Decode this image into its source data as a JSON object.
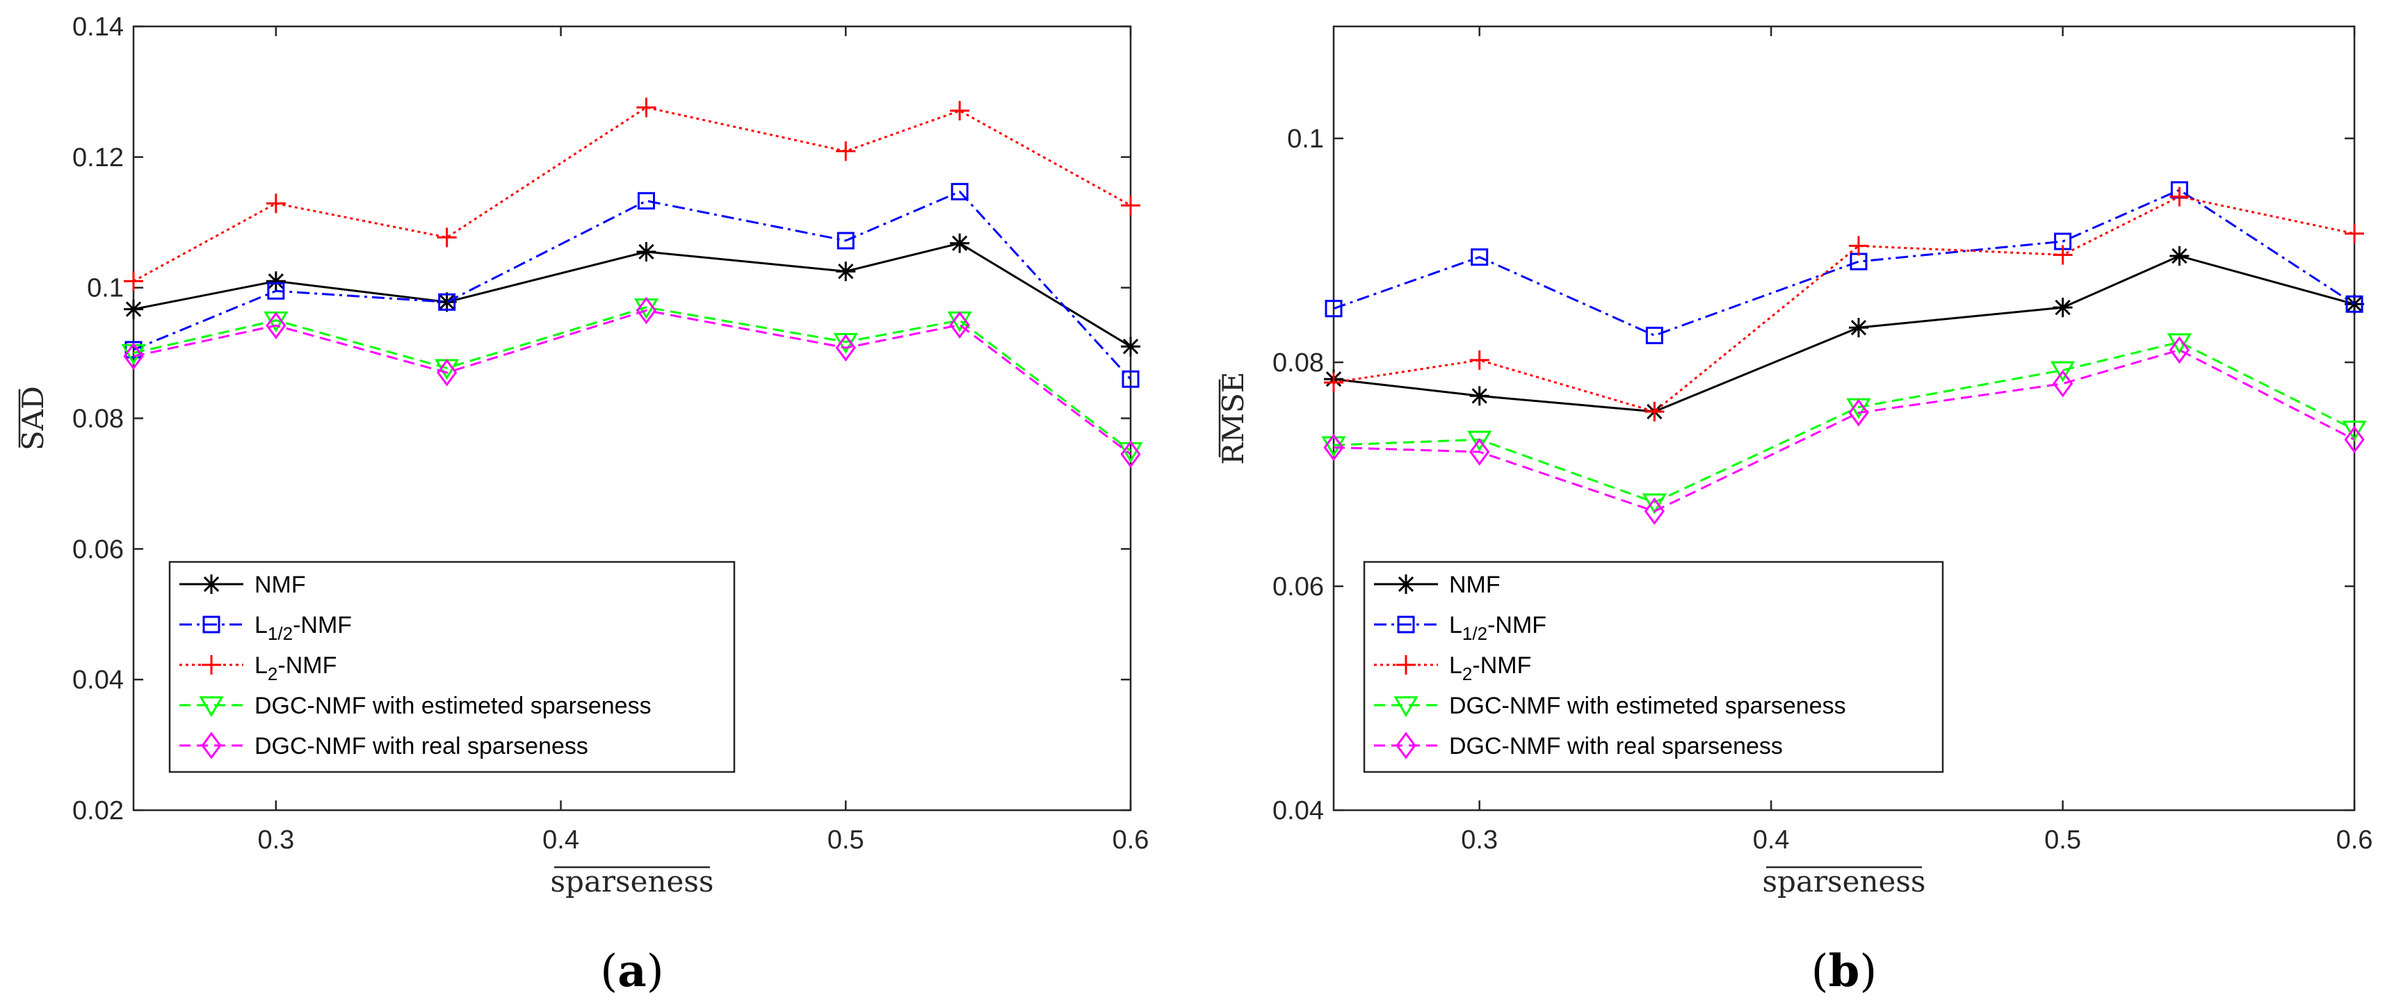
{
  "chart_data": [
    {
      "type": "line",
      "x": [
        0.25,
        0.3,
        0.36,
        0.43,
        0.5,
        0.54,
        0.6
      ],
      "xlim": [
        0.25,
        0.6
      ],
      "ylim": [
        0.02,
        0.14
      ],
      "xticks": [
        "0.3",
        "0.4",
        "0.5",
        "0.6"
      ],
      "xtick_values": [
        0.3,
        0.4,
        0.5,
        0.6
      ],
      "yticks": [
        "0.02",
        "0.04",
        "0.06",
        "0.08",
        "0.1",
        "0.12",
        "0.14"
      ],
      "ytick_values": [
        0.02,
        0.04,
        0.06,
        0.08,
        0.1,
        0.12,
        0.14
      ],
      "xlabel": "sparseness",
      "ylabel": "SAD",
      "label": "(a)",
      "series": [
        {
          "name": "NMF",
          "color": "#000000",
          "values": [
            0.0967,
            0.101,
            0.0978,
            0.1055,
            0.1025,
            0.1068,
            0.091
          ]
        },
        {
          "name": "L1/2-NMF",
          "color": "#0000ff",
          "values": [
            0.0905,
            0.0995,
            0.0978,
            0.1133,
            0.1072,
            0.1147,
            0.086
          ]
        },
        {
          "name": "L2-NMF",
          "color": "#ff0000",
          "values": [
            0.101,
            0.1129,
            0.1077,
            0.1276,
            0.1209,
            0.1271,
            0.1126
          ]
        },
        {
          "name": "DGC-NMF with  estimeted sparseness",
          "color": "#00ff00",
          "values": [
            0.09,
            0.095,
            0.0877,
            0.097,
            0.0917,
            0.095,
            0.075
          ]
        },
        {
          "name": "DGC-NMF with  real sparseness",
          "color": "#ff00ff",
          "values": [
            0.0895,
            0.0942,
            0.087,
            0.0965,
            0.0908,
            0.0943,
            0.0745
          ]
        }
      ]
    },
    {
      "type": "line",
      "x": [
        0.25,
        0.3,
        0.36,
        0.43,
        0.5,
        0.54,
        0.6
      ],
      "xlim": [
        0.25,
        0.6
      ],
      "ylim": [
        0.04,
        0.11
      ],
      "xticks": [
        "0.3",
        "0.4",
        "0.5",
        "0.6"
      ],
      "xtick_values": [
        0.3,
        0.4,
        0.5,
        0.6
      ],
      "yticks": [
        "0.04",
        "0.06",
        "0.08",
        "0.1"
      ],
      "ytick_values": [
        0.04,
        0.06,
        0.08,
        0.1
      ],
      "xlabel": "sparseness",
      "ylabel": "RMSE",
      "label": "(b)",
      "series": [
        {
          "name": "NMF",
          "color": "#000000",
          "values": [
            0.0785,
            0.077,
            0.0756,
            0.0831,
            0.0849,
            0.0895,
            0.0852
          ]
        },
        {
          "name": "L1/2-NMF",
          "color": "#0000ff",
          "values": [
            0.0848,
            0.0894,
            0.0824,
            0.089,
            0.0908,
            0.0954,
            0.0852
          ]
        },
        {
          "name": "L2-NMF",
          "color": "#ff0000",
          "values": [
            0.0782,
            0.0802,
            0.0756,
            0.0904,
            0.0896,
            0.0948,
            0.0915
          ]
        },
        {
          "name": "DGC-NMF with  estimeted sparseness",
          "color": "#00ff00",
          "values": [
            0.0726,
            0.0731,
            0.0675,
            0.076,
            0.0793,
            0.0818,
            0.074
          ]
        },
        {
          "name": "DGC-NMF with  real sparseness",
          "color": "#ff00ff",
          "values": [
            0.0724,
            0.072,
            0.0667,
            0.0755,
            0.0781,
            0.0811,
            0.0731
          ]
        }
      ]
    }
  ],
  "legend": {
    "items": [
      {
        "base": "NMF",
        "sub": "",
        "rest": ""
      },
      {
        "base": "L",
        "sub": "1/2",
        "rest": "-NMF"
      },
      {
        "base": "L",
        "sub": "2",
        "rest": "-NMF"
      },
      {
        "base": "DGC-NMF with  estimeted sparseness",
        "sub": "",
        "rest": ""
      },
      {
        "base": "DGC-NMF with  real sparseness",
        "sub": "",
        "rest": ""
      }
    ]
  }
}
